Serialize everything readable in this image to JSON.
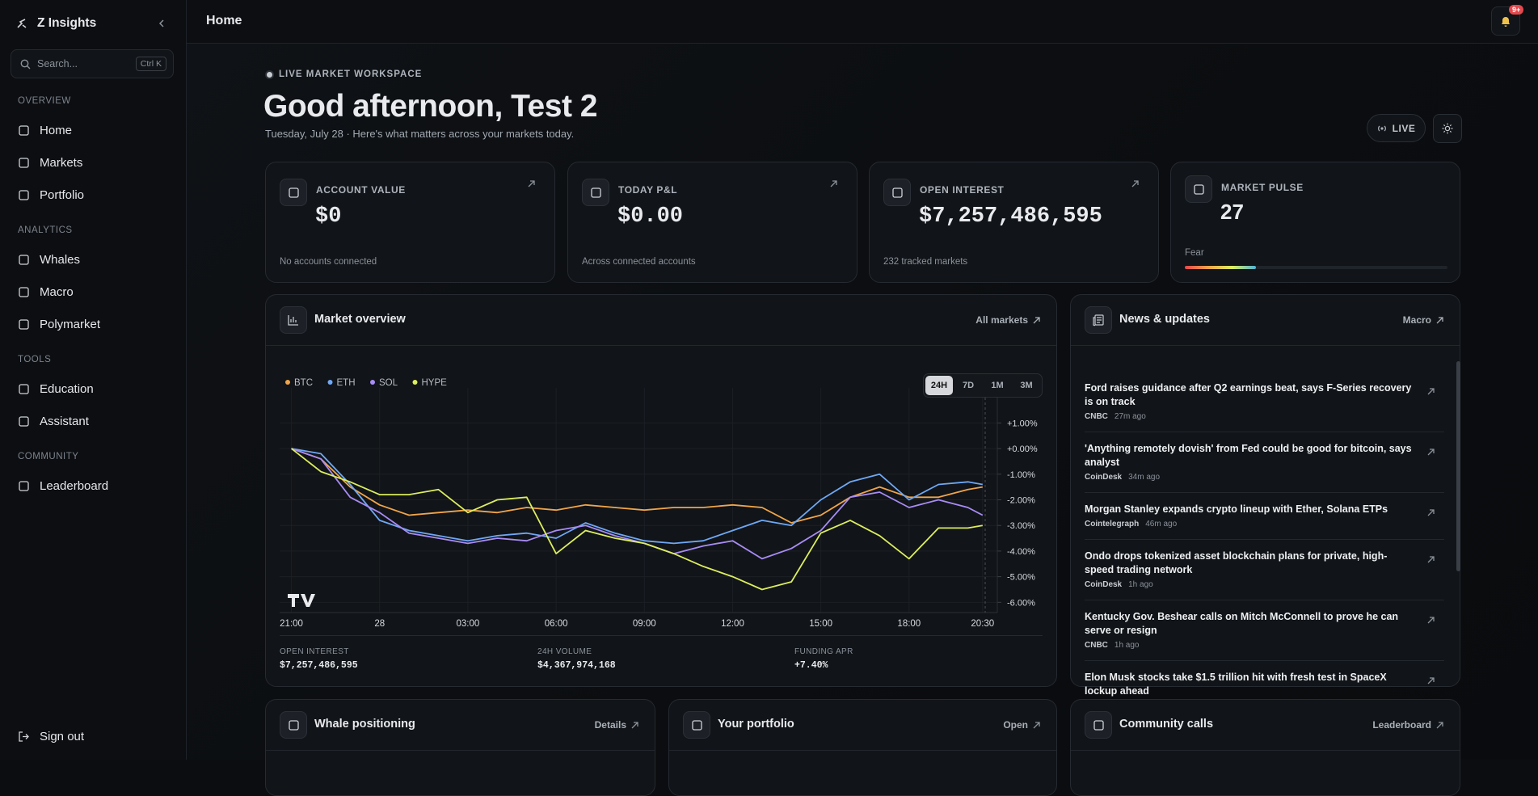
{
  "sidebar": {
    "brand": "Z Insights",
    "search_placeholder": "Search...",
    "search_shortcut": "Ctrl K",
    "sections": [
      {
        "label": "OVERVIEW",
        "items": [
          "Home",
          "Markets",
          "Portfolio"
        ]
      },
      {
        "label": "ANALYTICS",
        "items": [
          "Whales",
          "Macro",
          "Polymarket"
        ]
      },
      {
        "label": "TOOLS",
        "items": [
          "Education",
          "Assistant"
        ]
      },
      {
        "label": "COMMUNITY",
        "items": [
          "Leaderboard"
        ]
      }
    ],
    "sign_out": "Sign out"
  },
  "header": {
    "title": "Home",
    "notification_badge": "9+"
  },
  "hero": {
    "eyebrow": "LIVE MARKET WORKSPACE",
    "greeting": "Good afternoon, Test 2",
    "subtitle": "Tuesday, July 28 · Here's what matters across your markets today.",
    "live_button": "LIVE"
  },
  "stats": [
    {
      "label": "ACCOUNT VALUE",
      "value": "$0",
      "note": "No accounts connected"
    },
    {
      "label": "TODAY P&L",
      "value": "$0.00",
      "note": "Across connected accounts"
    },
    {
      "label": "OPEN INTEREST",
      "value": "$7,257,486,595",
      "note": "232 tracked markets"
    },
    {
      "label": "MARKET PULSE",
      "value": "27",
      "note": "Fear"
    }
  ],
  "market_overview": {
    "title": "Market overview",
    "link": "All markets",
    "ranges": [
      "24H",
      "7D",
      "1M",
      "3M"
    ],
    "footer": [
      {
        "label": "OPEN INTEREST",
        "value": "$7,257,486,595"
      },
      {
        "label": "24H VOLUME",
        "value": "$4,367,974,168"
      },
      {
        "label": "FUNDING APR",
        "value": "+7.40%"
      }
    ]
  },
  "chart_data": {
    "type": "line",
    "x": [
      0,
      1,
      2,
      3,
      4,
      5,
      6,
      7,
      8,
      9,
      10,
      11,
      12,
      13,
      14,
      15,
      16,
      17,
      18,
      19,
      20,
      21,
      22,
      23,
      23.5
    ],
    "xlim": [
      -0.4,
      24
    ],
    "xticks": [
      {
        "value": 0,
        "label": "21:00"
      },
      {
        "value": 3,
        "label": "28"
      },
      {
        "value": 6,
        "label": "03:00"
      },
      {
        "value": 9,
        "label": "06:00"
      },
      {
        "value": 12,
        "label": "09:00"
      },
      {
        "value": 15,
        "label": "12:00"
      },
      {
        "value": 18,
        "label": "15:00"
      },
      {
        "value": 21,
        "label": "18:00"
      },
      {
        "value": 23.5,
        "label": "20:30"
      }
    ],
    "ylim": [
      -6.4,
      1.8
    ],
    "yticks": [
      {
        "value": 1,
        "label": "+1.00%"
      },
      {
        "value": 0,
        "label": "+0.00%"
      },
      {
        "value": -1,
        "label": "-1.00%"
      },
      {
        "value": -2,
        "label": "-2.00%"
      },
      {
        "value": -3,
        "label": "-3.00%"
      },
      {
        "value": -4,
        "label": "-4.00%"
      },
      {
        "value": -5,
        "label": "-5.00%"
      },
      {
        "value": -6,
        "label": "-6.00%"
      }
    ],
    "grid": true,
    "series": [
      {
        "name": "BTC",
        "color": "#f0a54a",
        "values": [
          0,
          -0.4,
          -1.5,
          -2.2,
          -2.6,
          -2.5,
          -2.4,
          -2.5,
          -2.3,
          -2.4,
          -2.2,
          -2.3,
          -2.4,
          -2.3,
          -2.3,
          -2.2,
          -2.3,
          -2.9,
          -2.6,
          -1.9,
          -1.5,
          -1.9,
          -1.9,
          -1.6,
          -1.5
        ]
      },
      {
        "name": "ETH",
        "color": "#6fa8f5",
        "values": [
          0,
          -0.2,
          -1.4,
          -2.8,
          -3.2,
          -3.4,
          -3.6,
          -3.4,
          -3.3,
          -3.5,
          -2.9,
          -3.3,
          -3.6,
          -3.7,
          -3.6,
          -3.2,
          -2.8,
          -3.0,
          -2.0,
          -1.3,
          -1.0,
          -2.0,
          -1.4,
          -1.3,
          -1.4
        ]
      },
      {
        "name": "SOL",
        "color": "#a88cf5",
        "values": [
          0,
          -0.4,
          -1.9,
          -2.5,
          -3.3,
          -3.5,
          -3.7,
          -3.5,
          -3.6,
          -3.2,
          -3.0,
          -3.4,
          -3.7,
          -4.1,
          -3.8,
          -3.6,
          -4.3,
          -3.9,
          -3.2,
          -1.9,
          -1.7,
          -2.3,
          -2.0,
          -2.3,
          -2.6
        ]
      },
      {
        "name": "HYPE",
        "color": "#dcee5f",
        "values": [
          0,
          -0.9,
          -1.3,
          -1.8,
          -1.8,
          -1.6,
          -2.5,
          -2.0,
          -1.9,
          -4.1,
          -3.2,
          -3.5,
          -3.7,
          -4.1,
          -4.6,
          -5.0,
          -5.5,
          -5.2,
          -3.3,
          -2.8,
          -3.4,
          -4.3,
          -3.1,
          -3.1,
          -3.0
        ]
      }
    ]
  },
  "news": {
    "title": "News & updates",
    "link": "Macro",
    "items": [
      {
        "title": "Ford raises guidance after Q2 earnings beat, says F-Series recovery is on track",
        "source": "CNBC",
        "time": "27m ago"
      },
      {
        "title": "'Anything remotely dovish' from Fed could be good for bitcoin, says analyst",
        "source": "CoinDesk",
        "time": "34m ago"
      },
      {
        "title": "Morgan Stanley expands crypto lineup with Ether, Solana ETPs",
        "source": "Cointelegraph",
        "time": "46m ago"
      },
      {
        "title": "Ondo drops tokenized asset blockchain plans for private, high-speed trading network",
        "source": "CoinDesk",
        "time": "1h ago"
      },
      {
        "title": "Kentucky Gov. Beshear calls on Mitch McConnell to prove he can serve or resign",
        "source": "CNBC",
        "time": "1h ago"
      },
      {
        "title": "Elon Musk stocks take $1.5 trillion hit with fresh test in SpaceX lockup ahead"
      }
    ]
  },
  "bottom_panels": [
    {
      "title": "Whale positioning",
      "link": "Details"
    },
    {
      "title": "Your portfolio",
      "link": "Open"
    },
    {
      "title": "Community calls",
      "link": "Leaderboard"
    }
  ]
}
